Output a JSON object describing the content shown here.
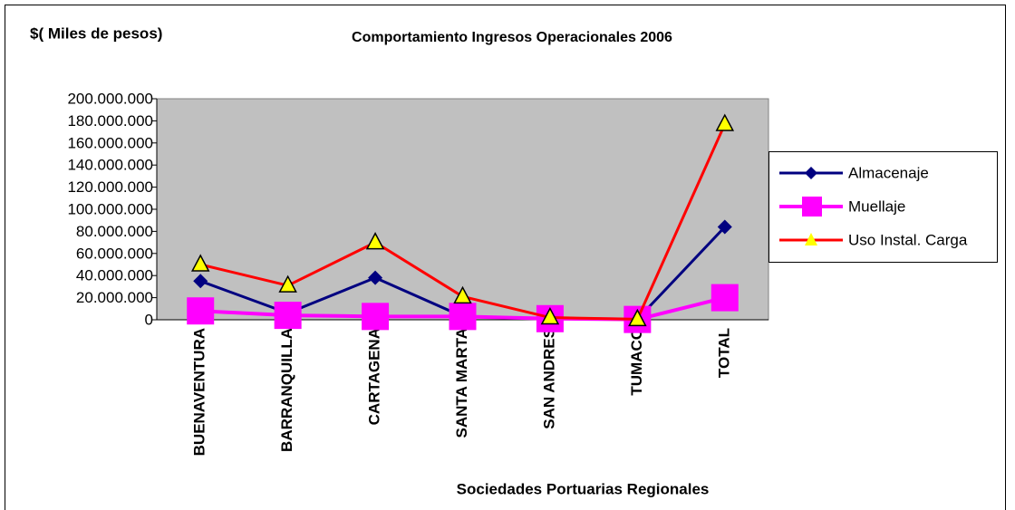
{
  "chart_data": {
    "type": "line",
    "title": "Comportamiento Ingresos Operacionales 2006",
    "y_label": "$( Miles de pesos)",
    "x_label": "Sociedades Portuarias Regionales",
    "categories": [
      "BUENAVENTURA",
      "BARRANQUILLA",
      "CARTAGENA",
      "SANTA MARTA",
      "SAN ANDRES",
      "TUMACO",
      "TOTAL"
    ],
    "series": [
      {
        "name": "Almacenaje",
        "color": "#000080",
        "marker": "diamond",
        "values": [
          35000000,
          6000000,
          38000000,
          3000000,
          1000000,
          500000,
          84000000
        ]
      },
      {
        "name": "Muellaje",
        "color": "#ff00ff",
        "marker": "square",
        "values": [
          8000000,
          4000000,
          3000000,
          3000000,
          1000000,
          300000,
          20000000
        ]
      },
      {
        "name": "Uso Instal. Carga",
        "color": "#ff0000",
        "marker": "triangle",
        "values": [
          50000000,
          31000000,
          70000000,
          21000000,
          2000000,
          500000,
          177000000
        ]
      }
    ],
    "ylim": [
      0,
      200000000
    ],
    "yticks": [
      0,
      {
        "value": 20000000,
        "label": "20.000.000"
      },
      {
        "value": 40000000,
        "label": "40.000.000"
      },
      {
        "value": 60000000,
        "label": "60.000.000"
      },
      {
        "value": 80000000,
        "label": "80.000.000"
      },
      {
        "value": 100000000,
        "label": "100.000.000"
      },
      {
        "value": 120000000,
        "label": "120.000.000"
      },
      {
        "value": 140000000,
        "label": "140.000.000"
      },
      {
        "value": 160000000,
        "label": "160.000.000"
      },
      {
        "value": 180000000,
        "label": "180.000.000"
      },
      {
        "value": 200000000,
        "label": "200.000.000"
      }
    ],
    "grid": false,
    "legend": "right"
  }
}
